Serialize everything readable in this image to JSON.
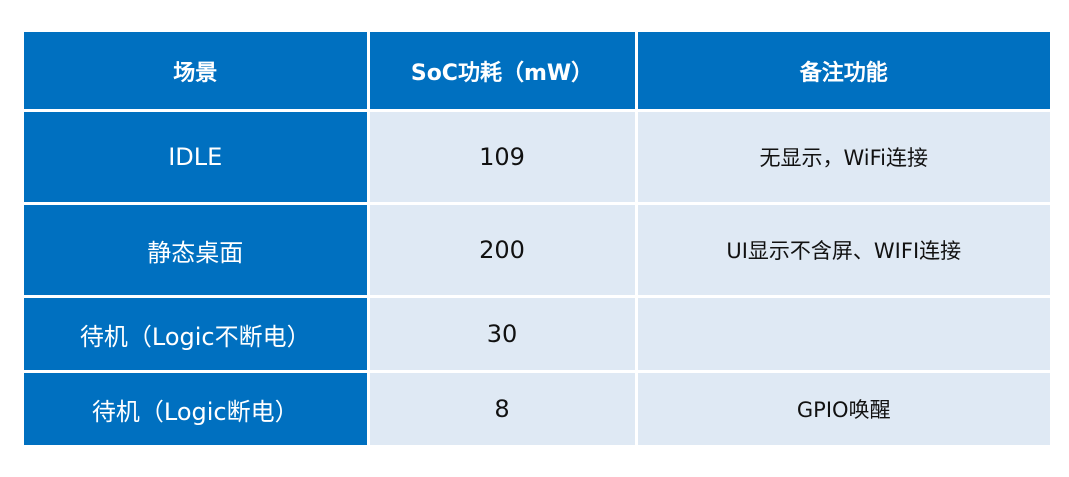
{
  "table": {
    "headers": [
      "场景",
      "SoC功耗（mW）",
      "备注功能"
    ],
    "rows": [
      {
        "scene": "IDLE",
        "power": "109",
        "note": "无显示，WiFi连接"
      },
      {
        "scene": "静态桌面",
        "power": "200",
        "note": "UI显示不含屏、WIFI连接"
      },
      {
        "scene": "待机（Logic不断电）",
        "power": "30",
        "note": ""
      },
      {
        "scene": "待机（Logic断电）",
        "power": "8",
        "note": "GPIO唤醒"
      }
    ]
  },
  "colors": {
    "header_bg": "#0070c0",
    "cell_bg": "#dfe9f4",
    "header_text": "#ffffff",
    "cell_text": "#111111"
  }
}
